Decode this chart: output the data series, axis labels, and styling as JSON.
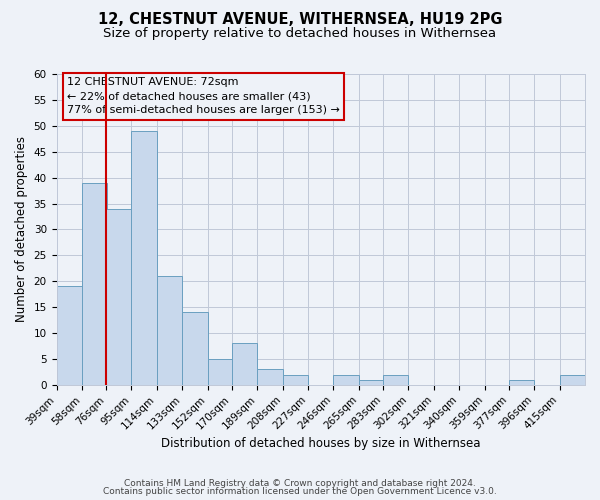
{
  "title": "12, CHESTNUT AVENUE, WITHERNSEA, HU19 2PG",
  "subtitle": "Size of property relative to detached houses in Withernsea",
  "xlabel": "Distribution of detached houses by size in Withernsea",
  "ylabel": "Number of detached properties",
  "bins": [
    39,
    58,
    76,
    95,
    114,
    133,
    152,
    170,
    189,
    208,
    227,
    246,
    265,
    283,
    302,
    321,
    340,
    359,
    377,
    396,
    415
  ],
  "bin_width": 19,
  "counts": [
    19,
    39,
    34,
    49,
    21,
    14,
    5,
    8,
    3,
    2,
    0,
    2,
    1,
    2,
    0,
    0,
    0,
    0,
    1,
    0,
    2
  ],
  "bin_labels": [
    "39sqm",
    "58sqm",
    "76sqm",
    "95sqm",
    "114sqm",
    "133sqm",
    "152sqm",
    "170sqm",
    "189sqm",
    "208sqm",
    "227sqm",
    "246sqm",
    "265sqm",
    "283sqm",
    "302sqm",
    "321sqm",
    "340sqm",
    "359sqm",
    "377sqm",
    "396sqm",
    "415sqm"
  ],
  "property_line_x": 76,
  "bar_facecolor": "#c8d8ec",
  "bar_edgecolor": "#6a9fc0",
  "vline_color": "#cc0000",
  "grid_color": "#c0c8d8",
  "background_color": "#eef2f8",
  "annotation_box_edgecolor": "#cc0000",
  "annotation_line1": "12 CHESTNUT AVENUE: 72sqm",
  "annotation_line2": "← 22% of detached houses are smaller (43)",
  "annotation_line3": "77% of semi-detached houses are larger (153) →",
  "ylim": [
    0,
    60
  ],
  "yticks": [
    0,
    5,
    10,
    15,
    20,
    25,
    30,
    35,
    40,
    45,
    50,
    55,
    60
  ],
  "footer1": "Contains HM Land Registry data © Crown copyright and database right 2024.",
  "footer2": "Contains public sector information licensed under the Open Government Licence v3.0.",
  "title_fontsize": 10.5,
  "subtitle_fontsize": 9.5,
  "axis_label_fontsize": 8.5,
  "tick_fontsize": 7.5,
  "annotation_fontsize": 8,
  "footer_fontsize": 6.5
}
